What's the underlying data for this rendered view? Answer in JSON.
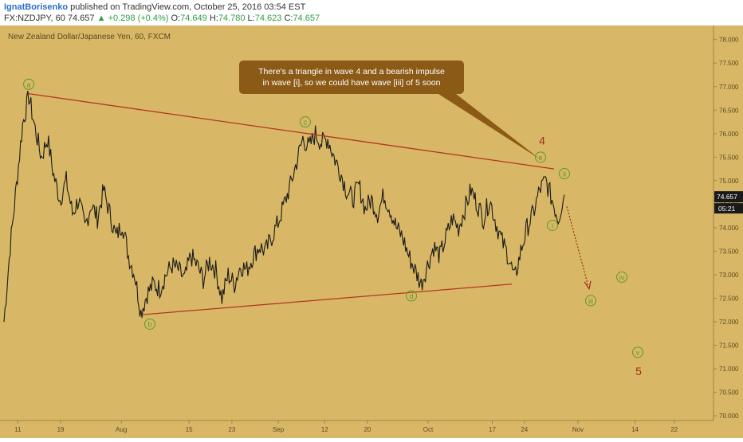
{
  "header": {
    "author": "IgnatBorisenko",
    "published": " published on TradingView.com, October 25, 2016 03:54 EST",
    "symbol": "FX:NZDJPY, 60",
    "price": "74.657",
    "up_arrow": "▲",
    "change": "+0.298 (+0.4%)",
    "o_label": "O:",
    "o_value": "74.649",
    "h_label": "H:",
    "h_value": "74.780",
    "l_label": "L:",
    "l_value": "74.623",
    "c_label": "C:",
    "c_value": "74.657"
  },
  "chart_data": {
    "type": "line",
    "title": "New Zealand Dollar/Japanese Yen, 60, FXCM",
    "x_tick_labels": [
      "11",
      "19",
      "Aug",
      "15",
      "23",
      "Sep",
      "12",
      "20",
      "Oct",
      "17",
      "24",
      "Nov",
      "14",
      "22"
    ],
    "y_ticks": [
      70.0,
      70.5,
      71.0,
      71.5,
      72.0,
      72.5,
      73.0,
      73.5,
      74.0,
      74.5,
      75.0,
      75.5,
      76.0,
      76.5,
      77.0,
      77.5,
      78.0
    ],
    "ylim": [
      69.9,
      78.3
    ],
    "last_price_label": "74.657",
    "countdown_label": "05:21",
    "series": [
      {
        "values": [
          72.0,
          73.6,
          74.9,
          76.2,
          76.8,
          76.1,
          75.5,
          75.9,
          75.1,
          74.6,
          75.0,
          74.3,
          74.6,
          74.0,
          74.5,
          74.2,
          74.8,
          74.3,
          73.8,
          74.1,
          73.4,
          73.0,
          72.2,
          72.6,
          72.8,
          72.7,
          73.0,
          73.2,
          73.1,
          72.9,
          73.4,
          73.2,
          72.9,
          73.3,
          73.1,
          72.5,
          73.0,
          72.8,
          73.2,
          73.1,
          73.4,
          73.6,
          73.5,
          73.8,
          74.1,
          74.5,
          74.9,
          75.4,
          75.9,
          75.7,
          76.0,
          75.8,
          75.9,
          75.5,
          75.2,
          74.8,
          74.6,
          74.9,
          74.4,
          74.6,
          74.3,
          74.7,
          74.4,
          74.0,
          73.8,
          73.4,
          73.1,
          72.8,
          73.2,
          73.6,
          73.4,
          73.8,
          74.2,
          74.0,
          74.4,
          74.8,
          74.5,
          74.2,
          74.6,
          74.1,
          73.7,
          73.4,
          72.9,
          73.5,
          74.0,
          74.3,
          74.8,
          75.0,
          74.6,
          74.2,
          74.7
        ]
      }
    ],
    "annotation": {
      "text_line1": "There's a triangle in wave 4 and a bearish impulse",
      "text_line2": "in wave [i], so we could have wave [iii] of 5 soon"
    },
    "wave_labels": [
      "a",
      "b",
      "c",
      "d",
      "e",
      "4",
      "i",
      "ii",
      "iii",
      "iv",
      "v",
      "5"
    ],
    "colors": {
      "background": "#d8b866",
      "trendline": "#b5361c",
      "wave_green": "#5d9b2a",
      "wave_red": "#a02e10",
      "callout": "#8b5a16",
      "price_label": "#1a1a1a",
      "up": "#2f9e44"
    }
  }
}
